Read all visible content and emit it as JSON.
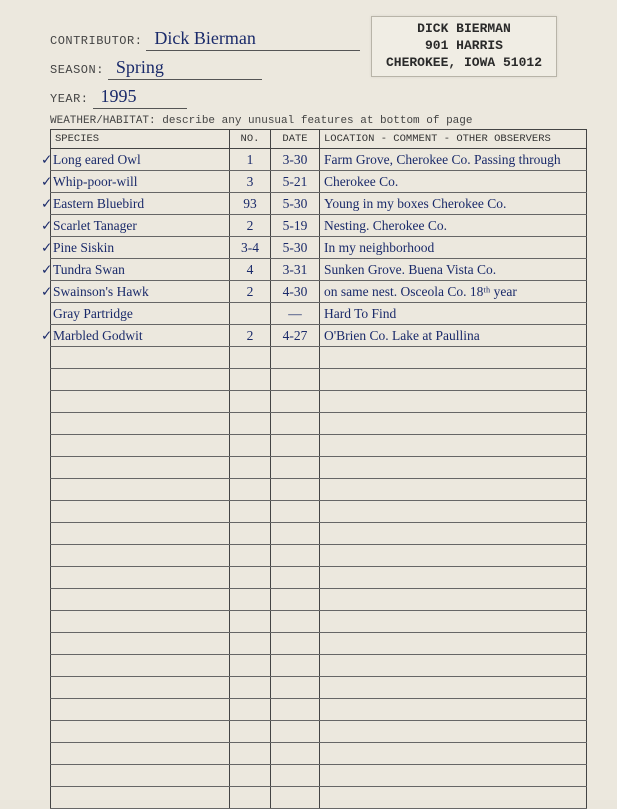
{
  "stamp": {
    "line1": "DICK BIERMAN",
    "line2": "901 HARRIS",
    "line3": "CHEROKEE, IOWA 51012"
  },
  "header": {
    "labels": {
      "contributor": "CONTRIBUTOR:",
      "season": "SEASON:",
      "year": "YEAR:",
      "weather": "WEATHER/HABITAT: describe any unusual features at bottom of page"
    },
    "contributor": "Dick Bierman",
    "season": "Spring",
    "year": "1995"
  },
  "columns": {
    "species": "SPECIES",
    "no": "NO.",
    "date": "DATE",
    "location": "LOCATION - COMMENT - OTHER OBSERVERS"
  },
  "rows": [
    {
      "chk": "✓",
      "species": "Long eared Owl",
      "no": "1",
      "date": "3-30",
      "loc": "Farm Grove, Cherokee Co. Passing through"
    },
    {
      "chk": "✓",
      "species": "Whip-poor-will",
      "no": "3",
      "date": "5-21",
      "loc": "Cherokee Co."
    },
    {
      "chk": "✓",
      "species": "Eastern Bluebird",
      "no": "93",
      "date": "5-30",
      "loc": "Young in my boxes  Cherokee Co."
    },
    {
      "chk": "✓",
      "species": "Scarlet Tanager",
      "no": "2",
      "date": "5-19",
      "loc": "Nesting. Cherokee Co."
    },
    {
      "chk": "✓",
      "species": "Pine Siskin",
      "no": "3-4",
      "date": "5-30",
      "loc": "In my neighborhood"
    },
    {
      "chk": "✓",
      "species": "Tundra Swan",
      "no": "4",
      "date": "3-31",
      "loc": "Sunken Grove. Buena Vista Co."
    },
    {
      "chk": "✓",
      "species": "Swainson's Hawk",
      "no": "2",
      "date": "4-30",
      "loc": "on same nest. Osceola Co. 18ᵗʰ year"
    },
    {
      "chk": "",
      "species": "Gray Partridge",
      "no": "",
      "date": "—",
      "loc": "Hard To Find"
    },
    {
      "chk": "✓",
      "species": "Marbled Godwit",
      "no": "2",
      "date": "4-27",
      "loc": "O'Brien Co. Lake at Paullina"
    }
  ],
  "empty_rows": 21,
  "style": {
    "ink_color": "#1a2a6a",
    "print_color": "#444",
    "rule_color": "#444"
  }
}
